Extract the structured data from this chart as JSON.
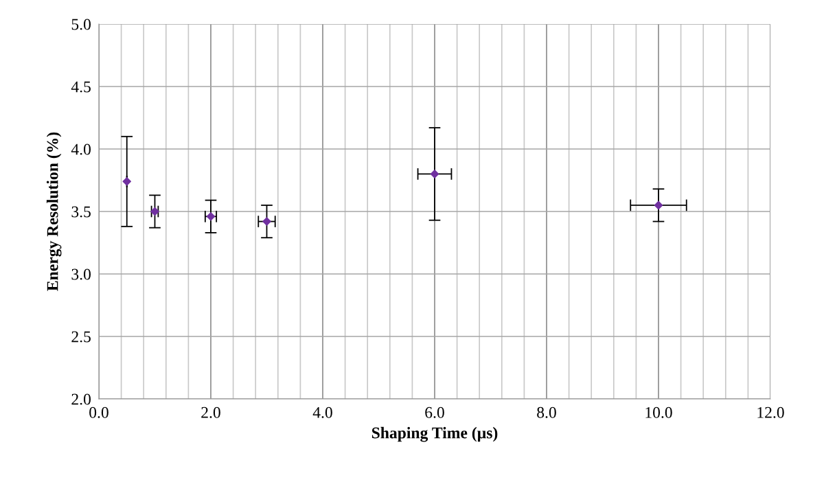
{
  "chart_data": {
    "type": "scatter",
    "xlabel": "Shaping Time (µs)",
    "ylabel": "Energy Resolution (%)",
    "x": [
      0.5,
      1.0,
      2.0,
      3.0,
      6.0,
      10.0
    ],
    "series": [
      {
        "color": "#7030a0",
        "values": [
          3.74,
          3.5,
          3.46,
          3.42,
          3.8,
          3.55
        ],
        "errors": [
          0.36,
          0.13,
          0.13,
          0.13,
          0.37,
          0.13
        ],
        "xerrors": [
          null,
          0.06,
          0.1,
          0.15,
          0.3,
          0.5
        ]
      }
    ],
    "xlim": [
      0,
      12
    ],
    "ylim": [
      2.0,
      5.0
    ],
    "xticks": [
      {
        "value": 0,
        "label": "0.0"
      },
      {
        "value": 0.4,
        "label": null
      },
      {
        "value": 0.8,
        "label": null
      },
      {
        "value": 1.2,
        "label": null
      },
      {
        "value": 1.6,
        "label": null
      },
      {
        "value": 2,
        "label": "2.0"
      },
      {
        "value": 2.4,
        "label": null
      },
      {
        "value": 2.8,
        "label": null
      },
      {
        "value": 3.2,
        "label": null
      },
      {
        "value": 3.6,
        "label": null
      },
      {
        "value": 4,
        "label": "4.0"
      },
      {
        "value": 4.4,
        "label": null
      },
      {
        "value": 4.8,
        "label": null
      },
      {
        "value": 5.2,
        "label": null
      },
      {
        "value": 5.6,
        "label": null
      },
      {
        "value": 6,
        "label": "6.0"
      },
      {
        "value": 6.4,
        "label": null
      },
      {
        "value": 6.8,
        "label": null
      },
      {
        "value": 7.2,
        "label": null
      },
      {
        "value": 7.6,
        "label": null
      },
      {
        "value": 8,
        "label": "8.0"
      },
      {
        "value": 8.4,
        "label": null
      },
      {
        "value": 8.8,
        "label": null
      },
      {
        "value": 9.2,
        "label": null
      },
      {
        "value": 9.6,
        "label": null
      },
      {
        "value": 10,
        "label": "10.0"
      },
      {
        "value": 10.4,
        "label": null
      },
      {
        "value": 10.8,
        "label": null
      },
      {
        "value": 11.2,
        "label": null
      },
      {
        "value": 11.6,
        "label": null
      },
      {
        "value": 12,
        "label": "12.0"
      }
    ],
    "yticks": [
      {
        "value": 2,
        "label": "2.0"
      },
      {
        "value": 2.5,
        "label": "2.5"
      },
      {
        "value": 3,
        "label": "3.0"
      },
      {
        "value": 3.5,
        "label": "3.5"
      },
      {
        "value": 4,
        "label": "4.0"
      },
      {
        "value": 4.5,
        "label": "4.5"
      },
      {
        "value": 5,
        "label": "5.0"
      }
    ],
    "grid": true,
    "marker": "diamond"
  }
}
